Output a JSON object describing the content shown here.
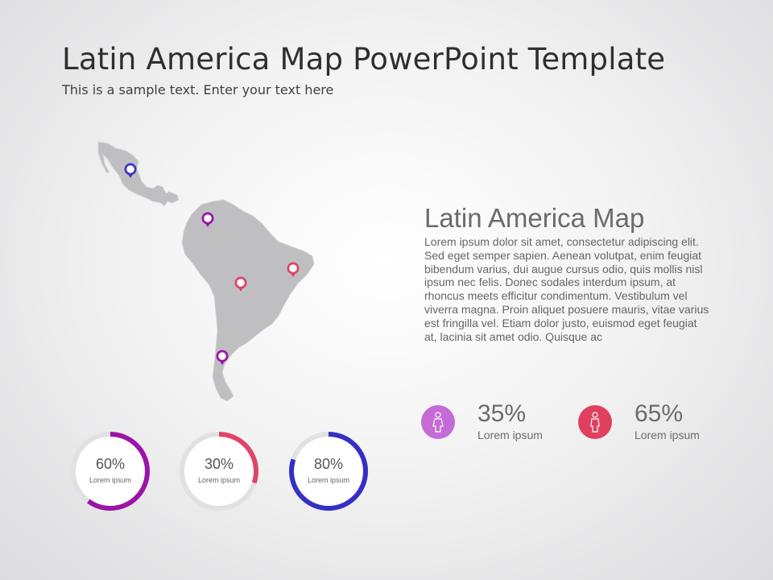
{
  "slide": {
    "title": "Latin America Map PowerPoint Template",
    "subtitle": "This is a sample text. Enter your text here"
  },
  "section": {
    "heading": "Latin America Map",
    "body": "Lorem ipsum dolor sit amet, consectetur adipiscing elit. Sed eget semper sapien. Aenean volutpat, enim feugiat bibendum varius, dui augue cursus odio, quis mollis nisl ipsum nec felis. Donec sodales interdum ipsum, at rhoncus meets efficitur condimentum. Vestibulum vel viverra magna. Proin aliquet posuere mauris, vitae varius est fringilla vel. Etiam dolor justo, euismod eget feugiat at, lacinia sit amet odio. Quisque ac"
  },
  "stats": [
    {
      "value": "35%",
      "label": "Lorem ipsum",
      "icon": "female-person-icon",
      "color": "#c46bd6"
    },
    {
      "value": "65%",
      "label": "Lorem ipsum",
      "icon": "male-person-icon",
      "color": "#e0405e"
    }
  ],
  "donuts": [
    {
      "value": "60%",
      "fraction": 0.6,
      "label": "Lorem ipsum",
      "color": "#9b14a8"
    },
    {
      "value": "30%",
      "fraction": 0.3,
      "label": "Lorem ipsum",
      "color": "#e04466"
    },
    {
      "value": "80%",
      "fraction": 0.8,
      "label": "Lorem ipsum",
      "color": "#3330c4"
    }
  ],
  "map": {
    "land_color": "#bfbfc2",
    "pins": [
      {
        "region": "mexico",
        "color": "#3a36c0"
      },
      {
        "region": "venezuela",
        "color": "#9b14a8"
      },
      {
        "region": "brazil-east",
        "color": "#e04466"
      },
      {
        "region": "bolivia",
        "color": "#e04466"
      },
      {
        "region": "argentina",
        "color": "#9b14a8"
      }
    ]
  },
  "colors": {
    "donut_track": "#e1e1e3",
    "donut_center": "#ffffff"
  }
}
